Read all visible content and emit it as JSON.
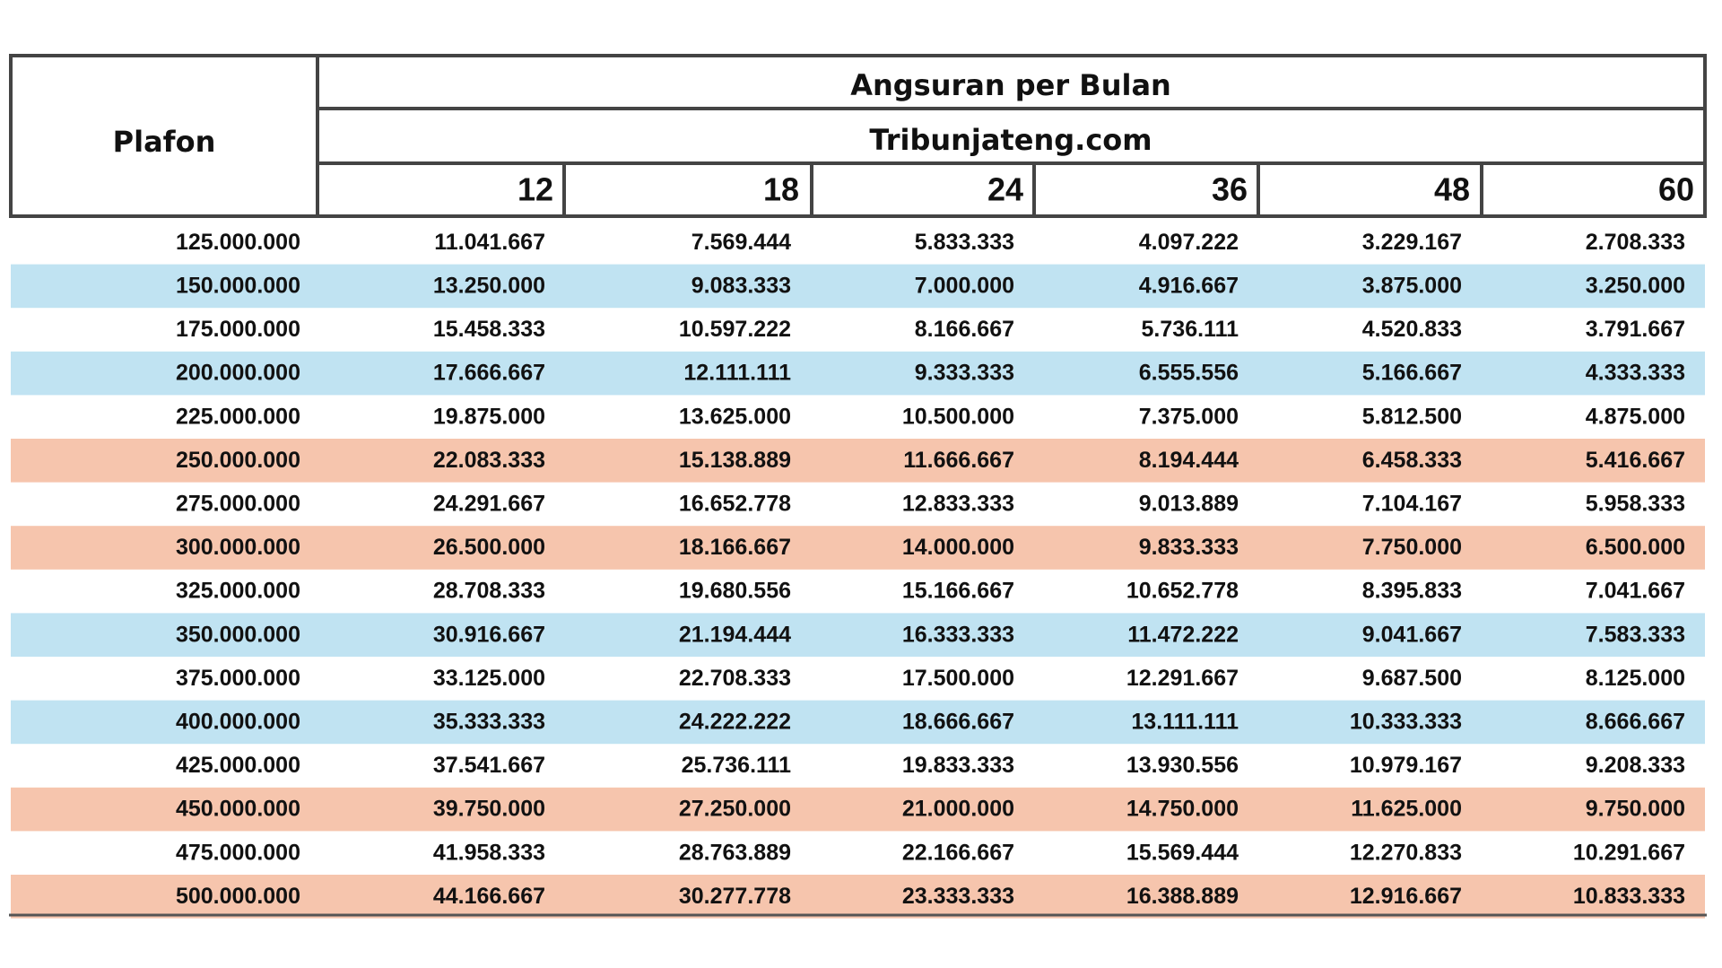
{
  "table": {
    "header": {
      "first": "Plafon",
      "title": "Angsuran per Bulan",
      "subtitle": "Tribunjateng.com",
      "tenors": [
        "12",
        "18",
        "24",
        "36",
        "48",
        "60"
      ]
    },
    "rows": [
      [
        "125.000.000",
        "11.041.667",
        "7.569.444",
        "5.833.333",
        "4.097.222",
        "3.229.167",
        "2.708.333"
      ],
      [
        "150.000.000",
        "13.250.000",
        "9.083.333",
        "7.000.000",
        "4.916.667",
        "3.875.000",
        "3.250.000"
      ],
      [
        "175.000.000",
        "15.458.333",
        "10.597.222",
        "8.166.667",
        "5.736.111",
        "4.520.833",
        "3.791.667"
      ],
      [
        "200.000.000",
        "17.666.667",
        "12.111.111",
        "9.333.333",
        "6.555.556",
        "5.166.667",
        "4.333.333"
      ],
      [
        "225.000.000",
        "19.875.000",
        "13.625.000",
        "10.500.000",
        "7.375.000",
        "5.812.500",
        "4.875.000"
      ],
      [
        "250.000.000",
        "22.083.333",
        "15.138.889",
        "11.666.667",
        "8.194.444",
        "6.458.333",
        "5.416.667"
      ],
      [
        "275.000.000",
        "24.291.667",
        "16.652.778",
        "12.833.333",
        "9.013.889",
        "7.104.167",
        "5.958.333"
      ],
      [
        "300.000.000",
        "26.500.000",
        "18.166.667",
        "14.000.000",
        "9.833.333",
        "7.750.000",
        "6.500.000"
      ],
      [
        "325.000.000",
        "28.708.333",
        "19.680.556",
        "15.166.667",
        "10.652.778",
        "8.395.833",
        "7.041.667"
      ],
      [
        "350.000.000",
        "30.916.667",
        "21.194.444",
        "16.333.333",
        "11.472.222",
        "9.041.667",
        "7.583.333"
      ],
      [
        "375.000.000",
        "33.125.000",
        "22.708.333",
        "17.500.000",
        "12.291.667",
        "9.687.500",
        "8.125.000"
      ],
      [
        "400.000.000",
        "35.333.333",
        "24.222.222",
        "18.666.667",
        "13.111.111",
        "10.333.333",
        "8.666.667"
      ],
      [
        "425.000.000",
        "37.541.667",
        "25.736.111",
        "19.833.333",
        "13.930.556",
        "10.979.167",
        "9.208.333"
      ],
      [
        "450.000.000",
        "39.750.000",
        "27.250.000",
        "21.000.000",
        "14.750.000",
        "11.625.000",
        "9.750.000"
      ],
      [
        "475.000.000",
        "41.958.333",
        "28.763.889",
        "22.166.667",
        "15.569.444",
        "12.270.833",
        "10.291.667"
      ],
      [
        "500.000.000",
        "44.166.667",
        "30.277.778",
        "23.333.333",
        "16.388.889",
        "12.916.667",
        "10.833.333"
      ]
    ],
    "row_fills": [
      null,
      "#c0e3f2",
      null,
      "#c0e3f2",
      null,
      "#f6c5ad",
      null,
      "#f6c5ad",
      null,
      "#c0e3f2",
      null,
      "#c0e3f2",
      null,
      "#f6c5ad",
      null,
      "#f6c5ad"
    ]
  }
}
